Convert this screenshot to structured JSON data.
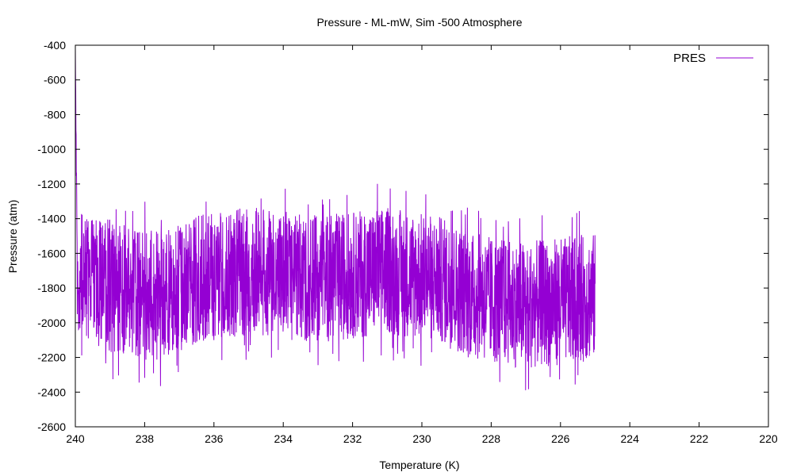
{
  "chart_data": {
    "type": "line",
    "title": "Pressure - ML-mW, Sim -500 Atmosphere",
    "xlabel": "Temperature (K)",
    "ylabel": "Pressure (atm)",
    "xlim": [
      240,
      220
    ],
    "ylim": [
      -2600,
      -400
    ],
    "x_ticks": [
      240,
      238,
      236,
      234,
      232,
      230,
      228,
      226,
      224,
      222,
      220
    ],
    "y_ticks": [
      -400,
      -600,
      -800,
      -1000,
      -1200,
      -1400,
      -1600,
      -1800,
      -2000,
      -2200,
      -2400,
      -2600
    ],
    "grid": false,
    "legend": "top-right",
    "colors": {
      "PRES": "#9400d3"
    },
    "series": [
      {
        "name": "PRES",
        "x_range": [
          240,
          225
        ],
        "initial_max": -480,
        "band_profile": [
          {
            "x": 240.0,
            "min": -2100,
            "max": -1300
          },
          {
            "x": 239.5,
            "min": -2150,
            "max": -1350
          },
          {
            "x": 238.5,
            "min": -2250,
            "max": -1400
          },
          {
            "x": 237.5,
            "min": -2250,
            "max": -1450
          },
          {
            "x": 236.5,
            "min": -2150,
            "max": -1350
          },
          {
            "x": 235.0,
            "min": -2100,
            "max": -1300
          },
          {
            "x": 233.0,
            "min": -2150,
            "max": -1350
          },
          {
            "x": 231.0,
            "min": -2100,
            "max": -1300
          },
          {
            "x": 229.5,
            "min": -2150,
            "max": -1350
          },
          {
            "x": 228.5,
            "min": -2250,
            "max": -1450
          },
          {
            "x": 227.0,
            "min": -2300,
            "max": -1500
          },
          {
            "x": 225.0,
            "min": -2250,
            "max": -1450
          }
        ]
      }
    ]
  }
}
